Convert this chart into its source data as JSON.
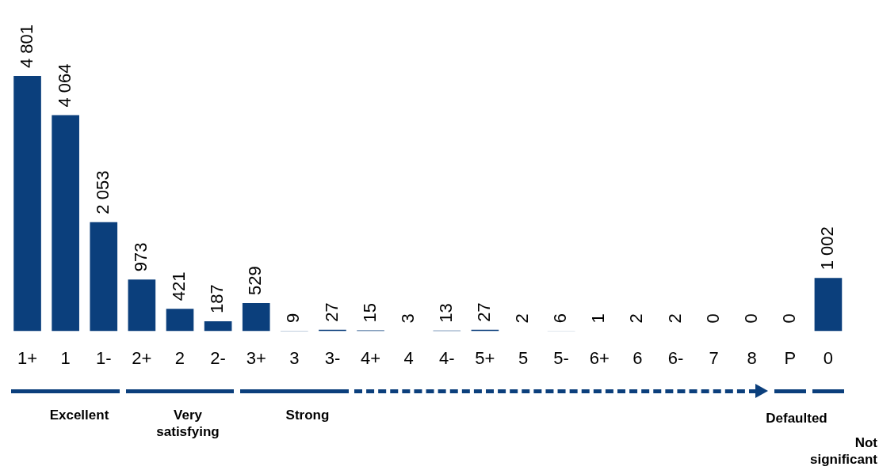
{
  "chart_data": {
    "type": "bar",
    "categories": [
      "1+",
      "1",
      "1-",
      "2+",
      "2",
      "2-",
      "3+",
      "3",
      "3-",
      "4+",
      "4",
      "4-",
      "5+",
      "5",
      "5-",
      "6+",
      "6",
      "6-",
      "7",
      "8",
      "P",
      "0"
    ],
    "values": [
      4801,
      4064,
      2053,
      973,
      421,
      187,
      529,
      9,
      27,
      15,
      3,
      13,
      27,
      2,
      6,
      1,
      2,
      2,
      0,
      0,
      0,
      1002
    ],
    "value_labels": [
      "4 801",
      "4 064",
      "2 053",
      "973",
      "421",
      "187",
      "529",
      "9",
      "27",
      "15",
      "3",
      "13",
      "27",
      "2",
      "6",
      "1",
      "2",
      "2",
      "0",
      "0",
      "0",
      "1 002"
    ],
    "color": "#0b3f7c",
    "grid": false,
    "legend": false,
    "annotations": [
      "Excellent",
      "Very satisfying",
      "Strong",
      "Defaulted",
      "Not significant"
    ]
  }
}
